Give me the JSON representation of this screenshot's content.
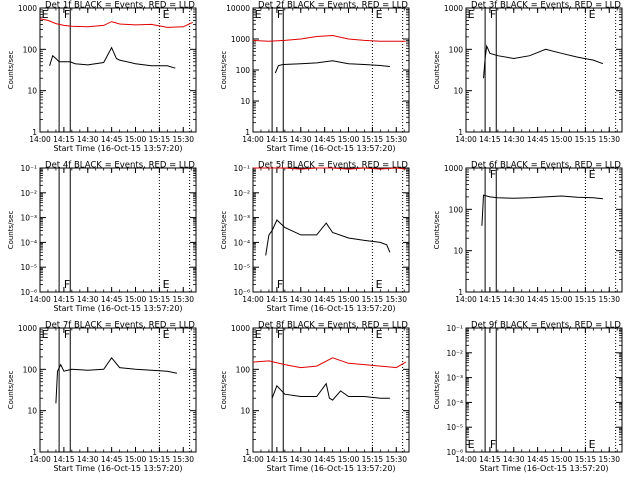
{
  "page_title": "",
  "colors": {
    "events": "#000000",
    "lld": "#e00000",
    "frame": "#000000"
  },
  "chart_data": [
    {
      "type": "line",
      "title": "Det 1f BLACK = Events, RED = LLD",
      "xlabel": "Start Time (16-Oct-15 13:57:20)",
      "ylabel": "Counts/sec",
      "xlim": [
        "14:00",
        "15:38"
      ],
      "xticks": [
        "14:00",
        "14:15",
        "14:30",
        "14:45",
        "15:00",
        "15:15",
        "15:30"
      ],
      "yscale": "log",
      "ylim": [
        1,
        1000
      ],
      "yticks": [
        "1",
        "10",
        "100",
        "1000"
      ],
      "flag_labels": [
        {
          "text": "E",
          "x": "14:01"
        },
        {
          "text": "F",
          "x": "14:15"
        },
        {
          "text": "E",
          "x": "15:17"
        }
      ],
      "solid_lines": [
        "14:12",
        "14:19"
      ],
      "dotted_lines": [
        "15:15",
        "15:34"
      ],
      "series": [
        {
          "color": "red",
          "x": [
            "14:00",
            "14:05",
            "14:10",
            "14:15",
            "14:20",
            "14:30",
            "14:40",
            "14:45",
            "14:50",
            "15:00",
            "15:10",
            "15:20",
            "15:30",
            "15:36"
          ],
          "values": [
            550,
            500,
            420,
            380,
            360,
            350,
            380,
            470,
            410,
            390,
            400,
            340,
            350,
            450
          ]
        },
        {
          "color": "black",
          "x": [
            "14:06",
            "14:08",
            "14:10",
            "14:12",
            "14:19",
            "14:22",
            "14:30",
            "14:40",
            "14:45",
            "14:48",
            "14:50",
            "15:00",
            "15:10",
            "15:20",
            "15:25"
          ],
          "values": [
            40,
            70,
            60,
            50,
            50,
            45,
            42,
            48,
            110,
            60,
            55,
            45,
            40,
            40,
            35
          ]
        }
      ]
    },
    {
      "type": "line",
      "title": "Det 2f BLACK = Events, RED = LLD",
      "xlabel": "Start Time (16-Oct-15 13:57:20)",
      "ylabel": "Counts/sec",
      "xlim": [
        "14:00",
        "15:38"
      ],
      "xticks": [
        "14:00",
        "14:15",
        "14:30",
        "14:45",
        "15:00",
        "15:15",
        "15:30"
      ],
      "yscale": "log",
      "ylim": [
        1,
        10000
      ],
      "yticks": [
        "1",
        "10",
        "100",
        "1000",
        "10000"
      ],
      "flag_labels": [
        {
          "text": "E",
          "x": "14:01"
        },
        {
          "text": "F",
          "x": "14:15"
        },
        {
          "text": "E",
          "x": "15:17"
        }
      ],
      "solid_lines": [
        "14:12",
        "14:19"
      ],
      "dotted_lines": [
        "15:15",
        "15:34"
      ],
      "series": [
        {
          "color": "red",
          "x": [
            "14:00",
            "14:10",
            "14:20",
            "14:30",
            "14:40",
            "14:50",
            "15:00",
            "15:10",
            "15:20",
            "15:36"
          ],
          "values": [
            900,
            850,
            900,
            1000,
            1200,
            1300,
            1000,
            900,
            850,
            850
          ]
        },
        {
          "color": "black",
          "x": [
            "14:14",
            "14:16",
            "14:19",
            "14:30",
            "14:40",
            "14:50",
            "15:00",
            "15:10",
            "15:20",
            "15:26"
          ],
          "values": [
            80,
            140,
            150,
            160,
            170,
            200,
            160,
            150,
            140,
            130
          ]
        }
      ]
    },
    {
      "type": "line",
      "title": "Det 3f BLACK = Events, RED = LLD",
      "xlabel": "",
      "ylabel": "Counts/sec",
      "xlim": [
        "14:00",
        "15:38"
      ],
      "xticks": [
        "14:00",
        "14:15",
        "14:30",
        "14:45",
        "15:00",
        "15:15",
        "15:30"
      ],
      "yscale": "log",
      "ylim": [
        1,
        1000
      ],
      "yticks": [
        "1",
        "10",
        "100",
        "1000"
      ],
      "flag_labels": [
        {
          "text": "E",
          "x": "14:01"
        },
        {
          "text": "F",
          "x": "14:15"
        },
        {
          "text": "E",
          "x": "15:17"
        }
      ],
      "solid_lines": [
        "14:12",
        "14:19"
      ],
      "dotted_lines": [
        "15:15",
        "15:34"
      ],
      "series": [
        {
          "color": "black",
          "x": [
            "14:11",
            "14:12",
            "14:13",
            "14:15",
            "14:20",
            "14:30",
            "14:40",
            "14:50",
            "15:00",
            "15:10",
            "15:20",
            "15:26"
          ],
          "values": [
            20,
            60,
            120,
            80,
            70,
            60,
            70,
            100,
            80,
            65,
            55,
            45
          ]
        }
      ]
    },
    {
      "type": "line",
      "title": "Det 4f BLACK = Events, RED = LLD",
      "xlabel": "Start Time (16-Oct-15 13:57:20)",
      "ylabel": "Counts/sec",
      "xlim": [
        "14:00",
        "15:38"
      ],
      "xticks": [
        "14:00",
        "14:15",
        "14:30",
        "14:45",
        "15:00",
        "15:15",
        "15:30"
      ],
      "yscale": "log",
      "ylim": [
        1e-06,
        0.1
      ],
      "yticks": [
        "10⁻⁶",
        "10⁻⁵",
        "10⁻⁴",
        "10⁻³",
        "10⁻²",
        "10⁻¹"
      ],
      "flag_labels": [
        {
          "text": "F",
          "x": "14:15"
        },
        {
          "text": "E",
          "x": "15:17"
        }
      ],
      "solid_lines": [
        "14:12",
        "14:19"
      ],
      "dotted_lines": [
        "15:15",
        "15:34"
      ],
      "series": []
    },
    {
      "type": "line",
      "title": "Det 5f BLACK = Events, RED = LLD",
      "xlabel": "Start Time (16-Oct-15 13:57:20)",
      "ylabel": "Counts/sec",
      "xlim": [
        "14:00",
        "15:38"
      ],
      "xticks": [
        "14:00",
        "14:15",
        "14:30",
        "14:45",
        "15:00",
        "15:15",
        "15:30"
      ],
      "yscale": "log",
      "ylim": [
        1e-06,
        0.1
      ],
      "yticks": [
        "10⁻⁶",
        "10⁻⁵",
        "10⁻⁴",
        "10⁻³",
        "10⁻²",
        "10⁻¹"
      ],
      "flag_labels": [
        {
          "text": "F",
          "x": "14:15"
        },
        {
          "text": "E",
          "x": "15:17"
        }
      ],
      "solid_lines": [
        "14:12",
        "14:19"
      ],
      "dotted_lines": [
        "15:15",
        "15:34"
      ],
      "series": [
        {
          "color": "red",
          "x": [
            "14:00",
            "14:10",
            "14:20",
            "14:30",
            "14:40",
            "14:50",
            "15:00",
            "15:10",
            "15:20",
            "15:30",
            "15:36"
          ],
          "values": [
            0.1,
            0.1,
            0.1,
            0.09,
            0.1,
            0.1,
            0.09,
            0.1,
            0.09,
            0.1,
            0.09
          ]
        },
        {
          "color": "black",
          "x": [
            "14:08",
            "14:10",
            "14:12",
            "14:15",
            "14:20",
            "14:30",
            "14:40",
            "14:46",
            "14:50",
            "15:00",
            "15:10",
            "15:20",
            "15:24",
            "15:26"
          ],
          "values": [
            3e-05,
            0.0002,
            0.0003,
            0.0008,
            0.0004,
            0.0002,
            0.0002,
            0.0006,
            0.00025,
            0.00015,
            0.00012,
            0.0001,
            8e-05,
            4e-05
          ]
        }
      ]
    },
    {
      "type": "line",
      "title": "Det 6f BLACK = Events, RED = LLD",
      "xlabel": "",
      "ylabel": "Counts/sec",
      "xlim": [
        "14:00",
        "15:38"
      ],
      "xticks": [
        "14:00",
        "14:15",
        "14:30",
        "14:45",
        "15:00",
        "15:15",
        "15:30"
      ],
      "yscale": "log",
      "ylim": [
        1,
        1000
      ],
      "yticks": [
        "1",
        "10",
        "100",
        "1000"
      ],
      "flag_labels": [
        {
          "text": "F",
          "x": "14:15"
        },
        {
          "text": "E",
          "x": "15:17"
        }
      ],
      "solid_lines": [
        "14:12",
        "14:19"
      ],
      "dotted_lines": [
        "15:15",
        "15:34"
      ],
      "series": [
        {
          "color": "black",
          "x": [
            "14:10",
            "14:11",
            "14:15",
            "14:20",
            "14:30",
            "14:40",
            "14:50",
            "15:00",
            "15:10",
            "15:20",
            "15:26"
          ],
          "values": [
            40,
            220,
            200,
            190,
            185,
            190,
            200,
            210,
            195,
            190,
            180
          ]
        }
      ]
    },
    {
      "type": "line",
      "title": "Det 7f BLACK = Events, RED = LLD",
      "xlabel": "Start Time (16-Oct-15 13:57:20)",
      "ylabel": "Counts/sec",
      "xlim": [
        "14:00",
        "15:38"
      ],
      "xticks": [
        "14:00",
        "14:15",
        "14:30",
        "14:45",
        "15:00",
        "15:15",
        "15:30"
      ],
      "yscale": "log",
      "ylim": [
        1,
        1000
      ],
      "yticks": [
        "1",
        "10",
        "100",
        "1000"
      ],
      "flag_labels": [
        {
          "text": "E",
          "x": "14:01"
        },
        {
          "text": "F",
          "x": "14:15"
        },
        {
          "text": "E",
          "x": "15:17"
        }
      ],
      "solid_lines": [
        "14:12",
        "14:19"
      ],
      "dotted_lines": [
        "15:15",
        "15:34"
      ],
      "series": [
        {
          "color": "black",
          "x": [
            "14:10",
            "14:11",
            "14:13",
            "14:15",
            "14:20",
            "14:30",
            "14:40",
            "14:45",
            "14:50",
            "15:00",
            "15:10",
            "15:20",
            "15:26"
          ],
          "values": [
            15,
            90,
            130,
            90,
            100,
            95,
            100,
            190,
            110,
            100,
            95,
            90,
            80
          ]
        }
      ]
    },
    {
      "type": "line",
      "title": "Det 8f BLACK = Events, RED = LLD",
      "xlabel": "Start Time (16-Oct-15 13:57:20)",
      "ylabel": "Counts/sec",
      "xlim": [
        "14:00",
        "15:38"
      ],
      "xticks": [
        "14:00",
        "14:15",
        "14:30",
        "14:45",
        "15:00",
        "15:15",
        "15:30"
      ],
      "yscale": "log",
      "ylim": [
        1,
        1000
      ],
      "yticks": [
        "1",
        "10",
        "100",
        "1000"
      ],
      "flag_labels": [
        {
          "text": "E",
          "x": "14:01"
        },
        {
          "text": "F",
          "x": "14:15"
        },
        {
          "text": "E",
          "x": "15:17"
        }
      ],
      "solid_lines": [
        "14:12",
        "14:19"
      ],
      "dotted_lines": [
        "15:15",
        "15:34"
      ],
      "series": [
        {
          "color": "red",
          "x": [
            "14:00",
            "14:10",
            "14:20",
            "14:30",
            "14:40",
            "14:50",
            "15:00",
            "15:10",
            "15:20",
            "15:30",
            "15:36"
          ],
          "values": [
            150,
            160,
            130,
            110,
            120,
            190,
            140,
            130,
            120,
            110,
            150
          ]
        },
        {
          "color": "black",
          "x": [
            "14:12",
            "14:15",
            "14:20",
            "14:30",
            "14:40",
            "14:46",
            "14:48",
            "14:50",
            "14:55",
            "15:00",
            "15:10",
            "15:20",
            "15:26"
          ],
          "values": [
            20,
            40,
            25,
            22,
            22,
            45,
            20,
            18,
            30,
            22,
            22,
            20,
            20
          ]
        }
      ]
    },
    {
      "type": "line",
      "title": "Det 9f BLACK = Events, RED = LLD",
      "xlabel": "Start Time (16-Oct-15 13:57:20)",
      "ylabel": "Counts/sec",
      "xlim": [
        "14:00",
        "15:38"
      ],
      "xticks": [
        "14:00",
        "14:15",
        "14:30",
        "14:45",
        "15:00",
        "15:15",
        "15:30"
      ],
      "yscale": "log",
      "ylim": [
        1e-06,
        0.1
      ],
      "yticks": [
        "10⁻⁶",
        "10⁻⁵",
        "10⁻⁴",
        "10⁻³",
        "10⁻²",
        "10⁻¹"
      ],
      "flag_labels": [
        {
          "text": "E",
          "x": "14:01"
        },
        {
          "text": "F",
          "x": "14:15"
        },
        {
          "text": "E",
          "x": "15:17"
        }
      ],
      "solid_lines": [
        "14:12",
        "14:19"
      ],
      "dotted_lines": [
        "15:15",
        "15:34"
      ],
      "series": []
    }
  ]
}
